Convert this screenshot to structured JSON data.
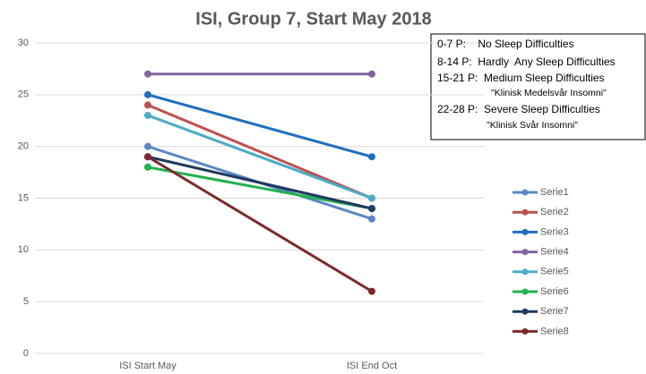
{
  "chart_data": {
    "type": "line",
    "title": "ISI, Group 7, Start May 2018",
    "categories": [
      "ISI Start May",
      "ISI End Oct"
    ],
    "series": [
      {
        "name": "Serie1",
        "color": "#5b87c4",
        "values": [
          20,
          13
        ]
      },
      {
        "name": "Serie2",
        "color": "#c0504d",
        "values": [
          24,
          15
        ]
      },
      {
        "name": "Serie3",
        "color": "#1f6fbf",
        "values": [
          25,
          19
        ]
      },
      {
        "name": "Serie4",
        "color": "#8064a2",
        "values": [
          27,
          27
        ]
      },
      {
        "name": "Serie5",
        "color": "#4bacc6",
        "values": [
          23,
          15
        ]
      },
      {
        "name": "Serie6",
        "color": "#22b14c",
        "values": [
          18,
          14
        ]
      },
      {
        "name": "Serie7",
        "color": "#1f3a60",
        "values": [
          19,
          14
        ]
      },
      {
        "name": "Serie8",
        "color": "#7b2a2a",
        "values": [
          19,
          6
        ]
      }
    ],
    "ylim": [
      0,
      30
    ],
    "yticks": [
      0,
      5,
      10,
      15,
      20,
      25,
      30
    ],
    "grid": true,
    "legend": "right",
    "annotations": [
      "0-7 P:    No Sleep Difficulties",
      "8-14 P:  Hardly  Any Sleep Difficulties",
      "15-21 P:  Medium Sleep Difficulties",
      "\"Klinisk Medelsvår Insomni\"",
      "22-28 P:  Severe Sleep Difficulties",
      "\"Klinisk Svår Insomni\""
    ]
  }
}
